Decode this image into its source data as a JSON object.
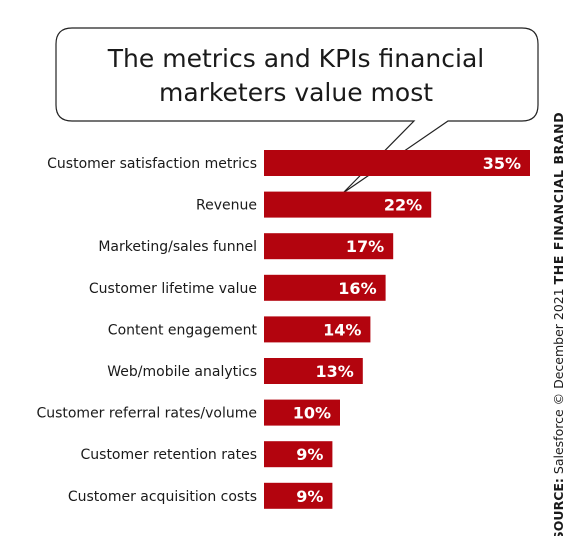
{
  "chart_data": {
    "type": "bar",
    "orientation": "horizontal",
    "title_lines": [
      "The metrics and KPIs financial",
      "marketers value most"
    ],
    "categories": [
      "Customer satisfaction metrics",
      "Revenue",
      "Marketing/sales funnel",
      "Customer lifetime value",
      "Content engagement",
      "Web/mobile analytics",
      "Customer referral rates/volume",
      "Customer retention rates",
      "Customer acquisition costs"
    ],
    "values": [
      35,
      22,
      17,
      16,
      14,
      13,
      10,
      9,
      9
    ],
    "value_labels": [
      "35%",
      "22%",
      "17%",
      "16%",
      "14%",
      "13%",
      "10%",
      "9%",
      "9%"
    ],
    "xlim": [
      0,
      35
    ],
    "grid": false,
    "bar_color": "#b3040e"
  },
  "source": {
    "prefix": "SOURCE:",
    "text": " Salesforce © December 2021 ",
    "brand": "THE FINANCIAL BRAND"
  }
}
